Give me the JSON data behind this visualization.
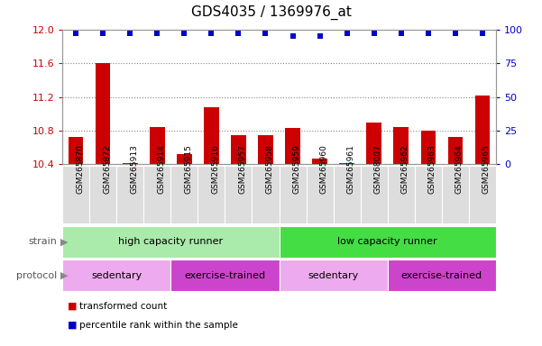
{
  "title": "GDS4035 / 1369976_at",
  "samples": [
    "GSM265870",
    "GSM265872",
    "GSM265913",
    "GSM265914",
    "GSM265915",
    "GSM265916",
    "GSM265957",
    "GSM265958",
    "GSM265959",
    "GSM265960",
    "GSM265961",
    "GSM268007",
    "GSM265962",
    "GSM265963",
    "GSM265964",
    "GSM265965"
  ],
  "bar_values": [
    10.73,
    11.6,
    10.41,
    10.84,
    10.52,
    11.08,
    10.75,
    10.75,
    10.83,
    10.47,
    10.41,
    10.9,
    10.84,
    10.8,
    10.72,
    11.22
  ],
  "percentile_values": [
    97,
    97,
    97,
    97,
    97,
    97,
    97,
    97,
    95,
    95,
    97,
    97,
    97,
    97,
    97,
    97
  ],
  "ylim_left": [
    10.4,
    12.0
  ],
  "ylim_right": [
    0,
    100
  ],
  "yticks_left": [
    10.4,
    10.8,
    11.2,
    11.6,
    12.0
  ],
  "yticks_right": [
    0,
    25,
    50,
    75,
    100
  ],
  "bar_color": "#cc0000",
  "dot_color": "#0000cc",
  "strain_groups": [
    {
      "label": "high capacity runner",
      "start": 0,
      "end": 8,
      "color": "#aaeaaa"
    },
    {
      "label": "low capacity runner",
      "start": 8,
      "end": 16,
      "color": "#44dd44"
    }
  ],
  "protocol_groups": [
    {
      "label": "sedentary",
      "start": 0,
      "end": 4,
      "color": "#eeaaee"
    },
    {
      "label": "exercise-trained",
      "start": 4,
      "end": 8,
      "color": "#cc44cc"
    },
    {
      "label": "sedentary",
      "start": 8,
      "end": 12,
      "color": "#eeaaee"
    },
    {
      "label": "exercise-trained",
      "start": 12,
      "end": 16,
      "color": "#cc44cc"
    }
  ],
  "legend_items": [
    {
      "label": "transformed count",
      "color": "#cc0000"
    },
    {
      "label": "percentile rank within the sample",
      "color": "#0000cc"
    }
  ],
  "strain_label": "strain",
  "protocol_label": "protocol",
  "tick_label_color": "#cc0000",
  "right_tick_color": "#0000cc",
  "grid_color": "#888888",
  "background_color": "#ffffff",
  "bar_baseline": 10.4,
  "xtick_bg": "#dddddd"
}
